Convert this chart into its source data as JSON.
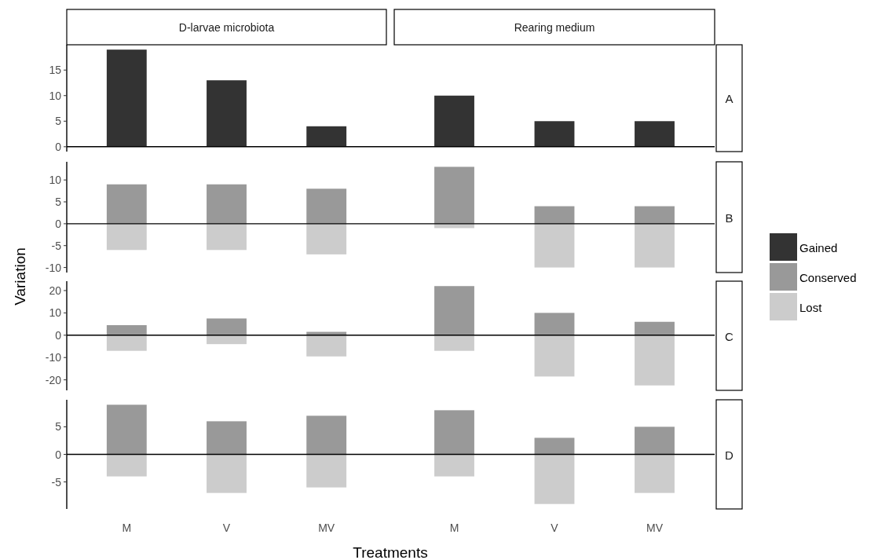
{
  "chart_data": [
    {
      "type": "bar",
      "annotations": [
        "D-larvae microbiota",
        "Rearing medium"
      ],
      "y2label": "A",
      "categories": [
        null,
        null,
        null,
        null,
        null,
        null
      ],
      "series": [
        {
          "name": "Gained",
          "color": "#333333",
          "values": [
            19,
            13,
            4,
            10,
            5,
            5
          ]
        }
      ],
      "ylim": [
        -0.95,
        19.95
      ],
      "yticks": [
        0,
        5,
        10,
        15
      ],
      "ref_lines": [
        {
          "axis": "y",
          "value": 0
        }
      ],
      "tick_labels": "y",
      "legend": "right"
    },
    {
      "type": "bar",
      "ylabel": "Variation",
      "y2label": "B",
      "categories": [
        null,
        null,
        null,
        null,
        null,
        null
      ],
      "series": [
        {
          "name": "Conserved",
          "color": "#999999",
          "values": [
            9,
            9,
            8,
            13,
            4,
            4
          ]
        },
        {
          "name": "Lost",
          "color": "#cccccc",
          "values": [
            -6,
            -6,
            -7,
            -1,
            -10,
            -10
          ]
        }
      ],
      "stacked": true,
      "ylim": [
        -11.15,
        14.15
      ],
      "yticks": [
        -10,
        -5,
        0,
        5,
        10
      ],
      "ref_lines": [
        {
          "axis": "y",
          "value": 0
        }
      ],
      "tick_labels": "y",
      "legend": "right"
    },
    {
      "type": "bar",
      "y2label": "C",
      "categories": [
        null,
        null,
        null,
        null,
        null,
        null
      ],
      "series": [
        {
          "color": "#999999",
          "values": [
            4.5,
            7.5,
            1.5,
            22,
            10,
            6
          ]
        },
        {
          "color": "#cccccc",
          "values": [
            -7,
            -4,
            -9.5,
            -7,
            -18.5,
            -22.5
          ]
        }
      ],
      "stacked": true,
      "ylim": [
        -24.7,
        24.2
      ],
      "yticks": [
        -20,
        -10,
        0,
        10,
        20
      ],
      "ref_lines": [
        {
          "axis": "y",
          "value": 0
        }
      ],
      "tick_labels": "y"
    },
    {
      "type": "bar",
      "xlabel": "Treatments",
      "y2label": "D",
      "categories": [
        "M",
        "V",
        "MV",
        "M",
        "V",
        "MV"
      ],
      "series": [
        {
          "color": "#999999",
          "values": [
            9,
            6,
            7,
            8,
            3,
            5
          ]
        },
        {
          "color": "#cccccc",
          "values": [
            -4,
            -7,
            -6,
            -4,
            -9,
            -7
          ]
        }
      ],
      "stacked": true,
      "ylim": [
        -9.9,
        9.9
      ],
      "yticks": [
        -5,
        0,
        5
      ],
      "ref_lines": [
        {
          "axis": "y",
          "value": 0
        }
      ]
    }
  ]
}
